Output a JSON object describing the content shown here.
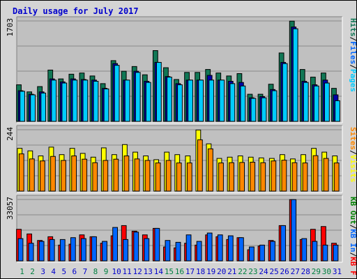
{
  "chart_data": {
    "title": "Daily usage for July 2017",
    "colors": {
      "background": "#d4d4d4",
      "plot_bg": "#c0c0c0",
      "title": "#0000cc",
      "gridline": "#8a8a8a",
      "weekend_day": "#008040",
      "weekday": "#0000cc",
      "hits": "#117755",
      "files": "#0000aa",
      "pages": "#00ccff",
      "visits": "#ffff00",
      "sites": "#ff8800",
      "kb_f": "#ff0000",
      "kb_in": "#0066ff",
      "kb_out": "#008000"
    },
    "days": [
      "1",
      "2",
      "3",
      "4",
      "5",
      "6",
      "7",
      "8",
      "9",
      "10",
      "11",
      "12",
      "13",
      "14",
      "15",
      "16",
      "17",
      "18",
      "19",
      "20",
      "21",
      "22",
      "23",
      "24",
      "25",
      "26",
      "27",
      "28",
      "29",
      "30",
      "31"
    ],
    "weekend_days": [
      "1",
      "2",
      "8",
      "9",
      "15",
      "16",
      "22",
      "23",
      "29",
      "30"
    ],
    "panels": [
      {
        "type": "bar",
        "name": "pages-files-hits",
        "ymax_label": "1703",
        "ymax": 1703,
        "legend": [
          {
            "label": "Pages",
            "color": "#00ccff"
          },
          {
            "label": "/",
            "color": "#000000"
          },
          {
            "label": "Files",
            "color": "#0066ff"
          },
          {
            "label": "/",
            "color": "#000000"
          },
          {
            "label": "Hits",
            "color": "#117755"
          }
        ],
        "series": [
          {
            "name": "Hits",
            "values": [
              620,
              500,
              590,
              870,
              720,
              800,
              820,
              770,
              640,
              1030,
              850,
              930,
              790,
              1200,
              910,
              710,
              830,
              830,
              880,
              820,
              770,
              810,
              460,
              460,
              630,
              1160,
              1700,
              880,
              750,
              820,
              560
            ]
          },
          {
            "name": "Files",
            "values": [
              520,
              460,
              500,
              720,
              670,
              720,
              710,
              700,
              560,
              980,
              700,
              850,
              680,
              1000,
              760,
              640,
              700,
              700,
              780,
              700,
              680,
              660,
              400,
              420,
              540,
              1000,
              1600,
              680,
              620,
              700,
              450
            ]
          },
          {
            "name": "Pages",
            "values": [
              510,
              450,
              480,
              700,
              650,
              700,
              700,
              680,
              550,
              950,
              700,
              830,
              660,
              1000,
              750,
              620,
              700,
              700,
              700,
              700,
              640,
              600,
              390,
              400,
              520,
              980,
              1570,
              660,
              600,
              650,
              350
            ]
          }
        ]
      },
      {
        "type": "bar",
        "name": "visits-sites",
        "ymax_label": "244",
        "ymax": 244,
        "legend": [
          {
            "label": "Visits",
            "color": "#ffff00"
          },
          {
            "label": "/",
            "color": "#000000"
          },
          {
            "label": "Sites",
            "color": "#ff8800"
          }
        ],
        "series": [
          {
            "name": "Visits",
            "values": [
              170,
              160,
              140,
              175,
              145,
              170,
              150,
              135,
              172,
              145,
              185,
              155,
              140,
              125,
              155,
              145,
              140,
              243,
              188,
              130,
              135,
              140,
              135,
              132,
              130,
              145,
              128,
              145,
              170,
              155,
              140
            ]
          },
          {
            "name": "Sites",
            "values": [
              148,
              128,
              120,
              138,
              122,
              140,
              127,
              113,
              122,
              127,
              140,
              128,
              122,
              112,
              122,
              112,
              112,
              204,
              168,
              112,
              113,
              114,
              115,
              113,
              120,
              123,
              113,
              112,
              141,
              130,
              112
            ]
          }
        ]
      },
      {
        "type": "bar",
        "name": "kb-f-in-out",
        "ymax_label": "33057",
        "ymax": 33057,
        "legend": [
          {
            "label": "KB F",
            "color": "#ff0000"
          },
          {
            "label": "/",
            "color": "#000000"
          },
          {
            "label": "KB In",
            "color": "#0066ff"
          },
          {
            "label": "/",
            "color": "#000000"
          },
          {
            "label": "KB Out",
            "color": "#008000"
          }
        ],
        "series": [
          {
            "name": "KB F",
            "values": [
              17000,
              14500,
              11000,
              13000,
              8500,
              9000,
              14000,
              13000,
              9500,
              13500,
              19000,
              16000,
              14000,
              17500,
              7500,
              7000,
              9500,
              8500,
              14000,
              13000,
              11500,
              12500,
              6000,
              8000,
              11000,
              19000,
              33000,
              11500,
              17000,
              18500,
              9500
            ]
          },
          {
            "name": "KB In",
            "values": [
              12000,
              9500,
              10500,
              11500,
              11500,
              12500,
              12000,
              13000,
              10500,
              18000,
              11500,
              15500,
              12000,
              17500,
              11000,
              10000,
              14000,
              10500,
              15000,
              14000,
              13500,
              12500,
              7500,
              8500,
              10500,
              19000,
              33000,
              12000,
              10500,
              8500,
              8500
            ]
          },
          {
            "name": "KB Out",
            "values": [
              0,
              0,
              0,
              0,
              0,
              0,
              0,
              0,
              0,
              0,
              0,
              0,
              0,
              0,
              0,
              0,
              0,
              0,
              0,
              0,
              0,
              0,
              0,
              0,
              0,
              0,
              0,
              0,
              0,
              0,
              0
            ]
          }
        ]
      }
    ]
  }
}
